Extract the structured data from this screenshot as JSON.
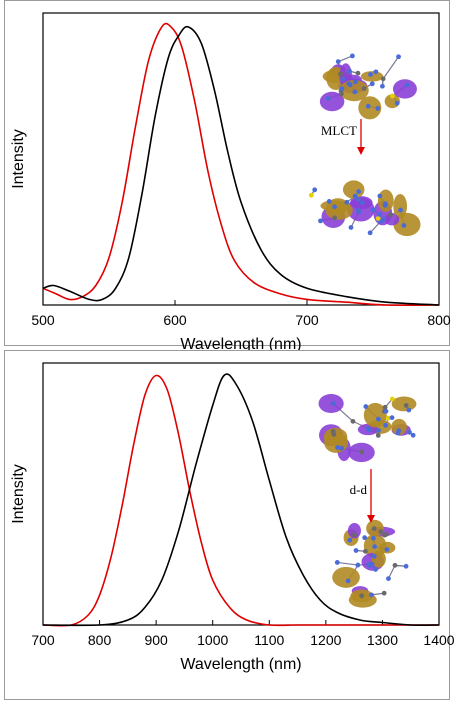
{
  "chart_data": [
    {
      "type": "line",
      "xlabel": "Wavelength (nm)",
      "ylabel": "Intensity",
      "xlim": [
        500,
        800
      ],
      "ylim": [
        0,
        1.05
      ],
      "xticks": [
        500,
        600,
        700,
        800
      ],
      "series": [
        {
          "color": "#e00000",
          "x": [
            500,
            510,
            520,
            530,
            540,
            550,
            560,
            570,
            580,
            590,
            597,
            605,
            615,
            625,
            635,
            645,
            660,
            680,
            700,
            730,
            760,
            800
          ],
          "y": [
            0.06,
            0.04,
            0.02,
            0.03,
            0.07,
            0.17,
            0.37,
            0.64,
            0.88,
            1.0,
            1.0,
            0.93,
            0.73,
            0.48,
            0.29,
            0.16,
            0.08,
            0.04,
            0.02,
            0.01,
            0.0,
            0.0
          ]
        },
        {
          "color": "#000000",
          "x": [
            500,
            508,
            520,
            535,
            545,
            555,
            565,
            575,
            585,
            595,
            603,
            610,
            620,
            630,
            640,
            650,
            665,
            680,
            700,
            730,
            760,
            800
          ],
          "y": [
            0.06,
            0.07,
            0.05,
            0.02,
            0.02,
            0.06,
            0.17,
            0.4,
            0.68,
            0.89,
            0.97,
            1.0,
            0.94,
            0.77,
            0.55,
            0.37,
            0.2,
            0.11,
            0.06,
            0.03,
            0.01,
            0.0
          ]
        }
      ],
      "annotation": "MLCT",
      "annotation_arrow_color": "#e00000"
    },
    {
      "type": "line",
      "xlabel": "Wavelength (nm)",
      "ylabel": "Intensity",
      "xlim": [
        700,
        1400
      ],
      "ylim": [
        0,
        1.05
      ],
      "xticks": [
        700,
        800,
        900,
        1000,
        1100,
        1200,
        1300,
        1400
      ],
      "series": [
        {
          "color": "#e00000",
          "x": [
            700,
            750,
            780,
            800,
            820,
            840,
            860,
            880,
            900,
            920,
            940,
            960,
            980,
            1000,
            1030,
            1060,
            1100,
            1150,
            1200,
            1400
          ],
          "y": [
            0.0,
            0.0,
            0.04,
            0.12,
            0.27,
            0.48,
            0.72,
            0.92,
            1.0,
            0.94,
            0.76,
            0.53,
            0.33,
            0.18,
            0.07,
            0.02,
            0.0,
            0.0,
            0.0,
            0.0
          ]
        },
        {
          "color": "#000000",
          "x": [
            700,
            800,
            850,
            880,
            910,
            940,
            970,
            1000,
            1020,
            1040,
            1070,
            1100,
            1130,
            1160,
            1190,
            1220,
            1260,
            1300,
            1350,
            1400
          ],
          "y": [
            0.0,
            0.0,
            0.02,
            0.07,
            0.18,
            0.38,
            0.64,
            0.88,
            1.0,
            0.97,
            0.82,
            0.58,
            0.35,
            0.2,
            0.1,
            0.05,
            0.02,
            0.01,
            0.0,
            0.0
          ]
        }
      ],
      "annotation": "d-d",
      "annotation_arrow_color": "#e00000"
    }
  ],
  "inset_colors": {
    "lobe_positive": "#8a3fd6",
    "lobe_negative": "#b08a22",
    "atom_n": "#4b6cd6",
    "atom_c": "#6a6a6a",
    "atom_s": "#e6d100",
    "atom_o": "#d11818"
  }
}
